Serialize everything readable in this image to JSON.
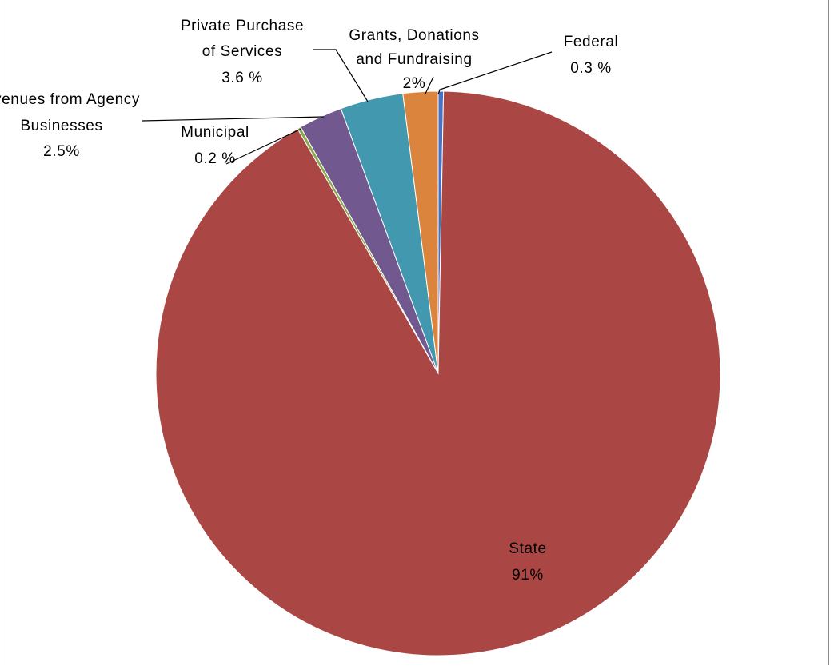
{
  "chart_data": {
    "type": "pie",
    "title": "",
    "slices": [
      {
        "label": "Federal",
        "value_text": "0.3 %",
        "value": 0.3,
        "color": "#4472c4"
      },
      {
        "label": "State",
        "value_text": "91%",
        "value": 91.4,
        "color": "#aa4744"
      },
      {
        "label": "Municipal",
        "value_text": "0.2 %",
        "value": 0.2,
        "color": "#8aa84e"
      },
      {
        "label": "Revenues from Agency Businesses",
        "value_text": "2.5%",
        "value": 2.5,
        "color": "#71588f"
      },
      {
        "label": "Private Purchase of Services",
        "value_text": "3.6 %",
        "value": 3.6,
        "color": "#4198af"
      },
      {
        "label": "Grants, Donations and Fundraising",
        "value_text": "2%",
        "value": 2.0,
        "color": "#db843d"
      }
    ]
  }
}
